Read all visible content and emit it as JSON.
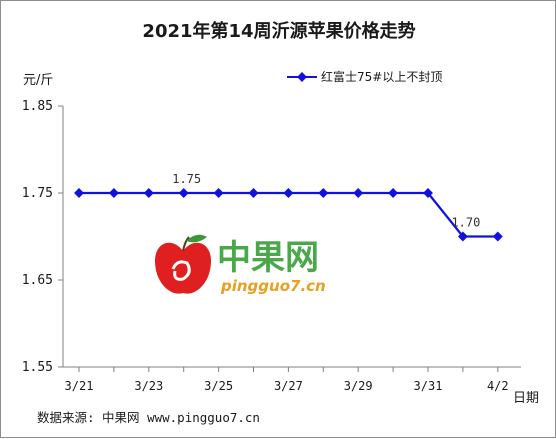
{
  "chart_data": {
    "type": "line",
    "title": "2021年第14周沂源苹果价格走势",
    "ylabel": "元/斤",
    "xlabel": "日期",
    "ylim": [
      1.55,
      1.85
    ],
    "yticks": [
      "1.85",
      "1.75",
      "1.65",
      "1.55"
    ],
    "x": [
      "3/21",
      "3/22",
      "3/23",
      "3/24",
      "3/25",
      "3/26",
      "3/27",
      "3/28",
      "3/29",
      "3/30",
      "3/31",
      "4/1",
      "4/2"
    ],
    "xtick_labels": [
      "3/21",
      "3/23",
      "3/25",
      "3/27",
      "3/29",
      "3/31",
      "4/2"
    ],
    "series": [
      {
        "name": "红富士75#以上不封顶",
        "color": "#1010e0",
        "values": [
          1.75,
          1.75,
          1.75,
          1.75,
          1.75,
          1.75,
          1.75,
          1.75,
          1.75,
          1.75,
          1.75,
          1.7,
          1.7
        ]
      }
    ],
    "annotations": [
      {
        "x": "3/24",
        "text": "1.75"
      },
      {
        "x": "4/1",
        "text": "1.70"
      }
    ],
    "grid": false,
    "legend_position": "top-right"
  },
  "watermark": {
    "brand": "中果网",
    "site": "pingguo7.cn"
  },
  "source_note": "数据来源: 中果网 www.pingguo7.cn"
}
